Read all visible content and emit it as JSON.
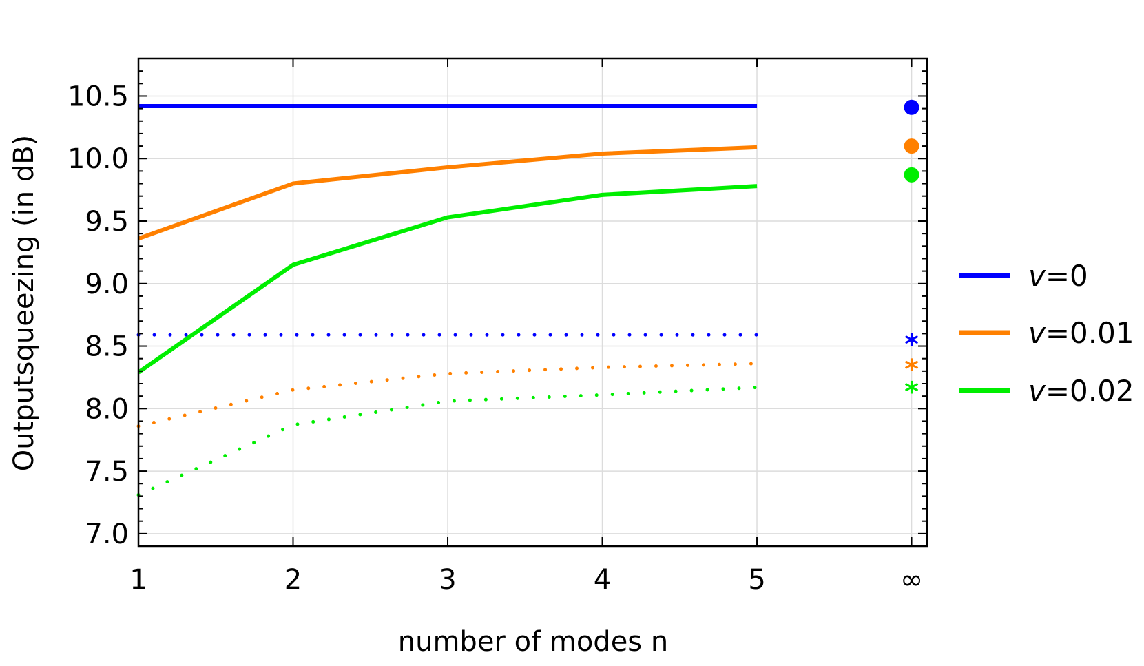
{
  "chart_data": {
    "type": "line",
    "title": "",
    "xlabel": "number of modes n",
    "ylabel": "Outputsqueezing (in dB)",
    "x": [
      1,
      2,
      3,
      4,
      5
    ],
    "x_tick_labels": [
      "1",
      "2",
      "3",
      "4",
      "5",
      "∞"
    ],
    "y_tick_labels": [
      "7.0",
      "7.5",
      "8.0",
      "8.5",
      "9.0",
      "9.5",
      "10.0",
      "10.5"
    ],
    "xlim": [
      1,
      6.1
    ],
    "ylim": [
      6.9,
      10.8
    ],
    "grid": true,
    "legend_position": "right",
    "series": [
      {
        "name": "ν=0",
        "color": "#0000ff",
        "style": "solid",
        "values": [
          10.42,
          10.42,
          10.42,
          10.42,
          10.42
        ],
        "infinity_marker": "dot",
        "infinity_value": 10.41
      },
      {
        "name": "ν=0.01",
        "color": "#ff8000",
        "style": "solid",
        "values": [
          9.36,
          9.8,
          9.93,
          10.04,
          10.09
        ],
        "infinity_marker": "dot",
        "infinity_value": 10.1
      },
      {
        "name": "ν=0.02",
        "color": "#00ee00",
        "style": "solid",
        "values": [
          8.29,
          9.15,
          9.53,
          9.71,
          9.78
        ],
        "infinity_marker": "dot",
        "infinity_value": 9.87
      },
      {
        "color": "#0000ff",
        "style": "dotted",
        "values": [
          8.59,
          8.59,
          8.59,
          8.59,
          8.59
        ],
        "infinity_marker": "star",
        "infinity_value": 8.56
      },
      {
        "color": "#ff8000",
        "style": "dotted",
        "values": [
          7.86,
          8.15,
          8.28,
          8.33,
          8.36
        ],
        "infinity_marker": "star",
        "infinity_value": 8.36
      },
      {
        "color": "#00ee00",
        "style": "dotted",
        "values": [
          7.31,
          7.87,
          8.06,
          8.11,
          8.17
        ],
        "infinity_marker": "star",
        "infinity_value": 8.18
      }
    ],
    "legend": [
      {
        "prefix": "v",
        "suffix": "=0",
        "color": "#0000ff"
      },
      {
        "prefix": "v",
        "suffix": "=0.01",
        "color": "#ff8000"
      },
      {
        "prefix": "v",
        "suffix": "=0.02",
        "color": "#00ee00"
      }
    ]
  }
}
